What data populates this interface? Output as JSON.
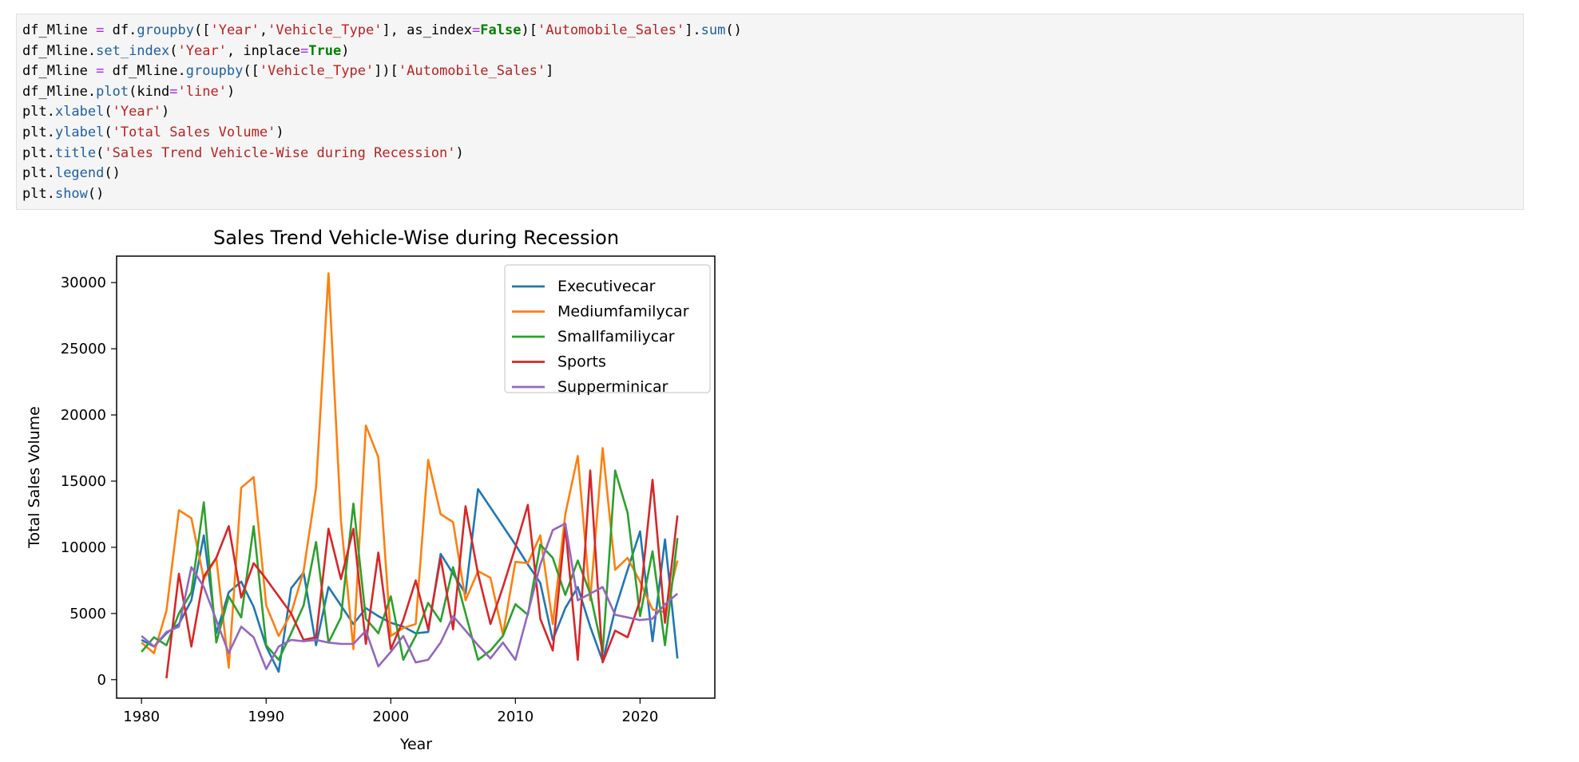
{
  "code_cell": {
    "lines": [
      [
        {
          "t": "df_Mline "
        },
        {
          "t": "=",
          "c": "op"
        },
        {
          "t": " df."
        },
        {
          "t": "groupby",
          "c": "fn"
        },
        {
          "t": "(["
        },
        {
          "t": "'Year'",
          "c": "str"
        },
        {
          "t": ","
        },
        {
          "t": "'Vehicle_Type'",
          "c": "str"
        },
        {
          "t": "], as_index"
        },
        {
          "t": "=",
          "c": "op"
        },
        {
          "t": "False",
          "c": "kw"
        },
        {
          "t": ")["
        },
        {
          "t": "'Automobile_Sales'",
          "c": "str"
        },
        {
          "t": "]."
        },
        {
          "t": "sum",
          "c": "fn"
        },
        {
          "t": "()"
        }
      ],
      [
        {
          "t": "df_Mline."
        },
        {
          "t": "set_index",
          "c": "fn"
        },
        {
          "t": "("
        },
        {
          "t": "'Year'",
          "c": "str"
        },
        {
          "t": ", inplace"
        },
        {
          "t": "=",
          "c": "op"
        },
        {
          "t": "True",
          "c": "kw"
        },
        {
          "t": ")"
        }
      ],
      [
        {
          "t": "df_Mline "
        },
        {
          "t": "=",
          "c": "op"
        },
        {
          "t": " df_Mline."
        },
        {
          "t": "groupby",
          "c": "fn"
        },
        {
          "t": "(["
        },
        {
          "t": "'Vehicle_Type'",
          "c": "str"
        },
        {
          "t": "])["
        },
        {
          "t": "'Automobile_Sales'",
          "c": "str"
        },
        {
          "t": "]"
        }
      ],
      [
        {
          "t": "df_Mline."
        },
        {
          "t": "plot",
          "c": "fn"
        },
        {
          "t": "(kind"
        },
        {
          "t": "=",
          "c": "op"
        },
        {
          "t": "'line'",
          "c": "str"
        },
        {
          "t": ")"
        }
      ],
      [
        {
          "t": "plt."
        },
        {
          "t": "xlabel",
          "c": "fn"
        },
        {
          "t": "("
        },
        {
          "t": "'Year'",
          "c": "str"
        },
        {
          "t": ")"
        }
      ],
      [
        {
          "t": "plt."
        },
        {
          "t": "ylabel",
          "c": "fn"
        },
        {
          "t": "("
        },
        {
          "t": "'Total Sales Volume'",
          "c": "str"
        },
        {
          "t": ")"
        }
      ],
      [
        {
          "t": "plt."
        },
        {
          "t": "title",
          "c": "fn"
        },
        {
          "t": "("
        },
        {
          "t": "'Sales Trend Vehicle-Wise during Recession'",
          "c": "str"
        },
        {
          "t": ")"
        }
      ],
      [
        {
          "t": "plt."
        },
        {
          "t": "legend",
          "c": "fn"
        },
        {
          "t": "()"
        }
      ],
      [
        {
          "t": "plt."
        },
        {
          "t": "show",
          "c": "fn"
        },
        {
          "t": "()"
        }
      ]
    ]
  },
  "chart_data": {
    "type": "line",
    "title": "Sales Trend Vehicle-Wise during Recession",
    "xlabel": "Year",
    "ylabel": "Total Sales Volume",
    "xlim": [
      1978,
      2026
    ],
    "ylim": [
      -1400,
      32000
    ],
    "xticks": [
      1980,
      1990,
      2000,
      2010,
      2020
    ],
    "yticks": [
      0,
      5000,
      10000,
      15000,
      20000,
      25000,
      30000
    ],
    "legend_position": "top-right",
    "grid": false,
    "series": [
      {
        "name": "Executivecar",
        "color": "#1f77b4",
        "x": [
          1980,
          1981,
          1982,
          1983,
          1984,
          1985,
          1986,
          1987,
          1988,
          1989,
          1990,
          1991,
          1992,
          1993,
          1994,
          1995,
          1996,
          1997,
          1998,
          1999,
          2000,
          2001,
          2002,
          2003,
          2004,
          2005,
          2006,
          2007,
          2008,
          2009,
          2010,
          2011,
          2012,
          2013,
          2014,
          2015,
          2016,
          2017,
          2018,
          2019,
          2020,
          2021,
          2022,
          2023
        ],
        "y": [
          3000,
          2500,
          3500,
          4200,
          6000,
          10900,
          3500,
          6600,
          7400,
          5500,
          2500,
          600,
          6900,
          8100,
          2600,
          7000,
          5600,
          4200,
          5400,
          4800,
          4300,
          4000,
          3500,
          3600,
          9500,
          8000,
          6500,
          14400,
          13000,
          11600,
          10200,
          8700,
          7300,
          3000,
          5400,
          7000,
          4000,
          1400,
          5300,
          8300,
          11200,
          2900,
          10600,
          1600
        ]
      },
      {
        "name": "Mediumfamilycar",
        "color": "#ff7f0e",
        "x": [
          1980,
          1981,
          1982,
          1983,
          1984,
          1985,
          1986,
          1987,
          1988,
          1989,
          1990,
          1991,
          1992,
          1993,
          1994,
          1995,
          1996,
          1997,
          1998,
          1999,
          2000,
          2001,
          2002,
          2003,
          2004,
          2005,
          2006,
          2007,
          2008,
          2009,
          2010,
          2011,
          2012,
          2013,
          2014,
          2015,
          2016,
          2017,
          2018,
          2019,
          2020,
          2021,
          2022,
          2023
        ],
        "y": [
          2800,
          2000,
          5200,
          12800,
          12200,
          7600,
          9200,
          900,
          14500,
          15300,
          5600,
          3300,
          5000,
          8200,
          14500,
          30700,
          12000,
          2300,
          19200,
          16800,
          3300,
          3900,
          4200,
          16600,
          12500,
          11900,
          6000,
          8200,
          7700,
          3400,
          8900,
          8800,
          10900,
          4200,
          12500,
          16900,
          6000,
          17500,
          8300,
          9200,
          7400,
          5300,
          5100,
          9000
        ]
      },
      {
        "name": "Smallfamiliycar",
        "color": "#2ca02c",
        "x": [
          1980,
          1981,
          1982,
          1983,
          1984,
          1985,
          1986,
          1987,
          1988,
          1989,
          1990,
          1991,
          1992,
          1993,
          1994,
          1995,
          1996,
          1997,
          1998,
          1999,
          2000,
          2001,
          2002,
          2003,
          2004,
          2005,
          2006,
          2007,
          2008,
          2009,
          2010,
          2011,
          2012,
          2013,
          2014,
          2015,
          2016,
          2017,
          2018,
          2019,
          2020,
          2021,
          2022,
          2023
        ],
        "y": [
          2100,
          3200,
          2600,
          5000,
          6600,
          13400,
          2800,
          6300,
          4700,
          11600,
          2600,
          1500,
          3500,
          5600,
          10400,
          2800,
          4700,
          13300,
          4600,
          3500,
          6300,
          1500,
          3300,
          5800,
          4400,
          8500,
          5000,
          1500,
          2200,
          3300,
          5700,
          4900,
          10200,
          9200,
          6400,
          9000,
          6500,
          2100,
          15800,
          12600,
          4800,
          9700,
          2600,
          10700
        ]
      },
      {
        "name": "Sports",
        "color": "#d62728",
        "x": [
          1982,
          1983,
          1984,
          1985,
          1986,
          1987,
          1988,
          1989,
          1990,
          1991,
          1992,
          1993,
          1994,
          1995,
          1996,
          1997,
          1998,
          1999,
          2000,
          2001,
          2002,
          2003,
          2004,
          2005,
          2006,
          2007,
          2008,
          2009,
          2010,
          2011,
          2012,
          2013,
          2014,
          2015,
          2016,
          2017,
          2018,
          2019,
          2020,
          2021,
          2022,
          2023
        ],
        "y": [
          100,
          8000,
          2500,
          7800,
          9200,
          11600,
          6200,
          8800,
          7600,
          6300,
          5000,
          3000,
          3200,
          11400,
          7600,
          11400,
          2700,
          9600,
          2300,
          4500,
          7500,
          3800,
          9200,
          3800,
          13100,
          8000,
          4200,
          7000,
          10000,
          13200,
          4600,
          2200,
          11600,
          1500,
          15800,
          1300,
          3700,
          3200,
          6000,
          15100,
          4300,
          12400
        ]
      },
      {
        "name": "Supperminicar",
        "color": "#9467bd",
        "x": [
          1980,
          1981,
          1982,
          1983,
          1984,
          1985,
          1986,
          1987,
          1988,
          1989,
          1990,
          1991,
          1992,
          1993,
          1994,
          1995,
          1996,
          1997,
          1998,
          1999,
          2000,
          2001,
          2002,
          2003,
          2004,
          2005,
          2006,
          2007,
          2008,
          2009,
          2010,
          2011,
          2012,
          2013,
          2014,
          2015,
          2016,
          2017,
          2018,
          2019,
          2020,
          2021,
          2022,
          2023
        ],
        "y": [
          3300,
          2500,
          3600,
          4000,
          8500,
          7000,
          4500,
          2000,
          4000,
          3200,
          800,
          2500,
          3000,
          2900,
          3000,
          2800,
          2700,
          2700,
          3700,
          1000,
          2100,
          3300,
          1300,
          1500,
          2800,
          4800,
          3700,
          2600,
          1600,
          2800,
          1500,
          5000,
          8700,
          11300,
          11800,
          6000,
          6500,
          7000,
          4900,
          4700,
          4500,
          4600,
          5700,
          6500
        ]
      }
    ]
  }
}
